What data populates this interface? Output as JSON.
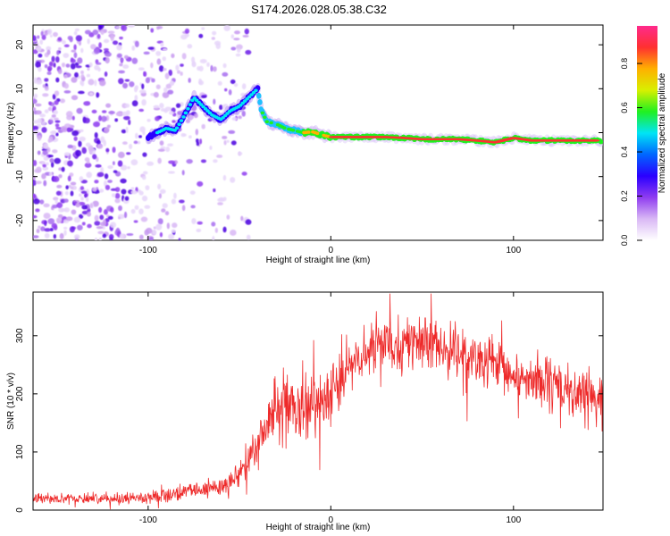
{
  "title": "S174.2026.028.05.38.C32",
  "chart_data": [
    {
      "type": "heatmap",
      "name": "spectrogram",
      "xlabel": "Height of straight line (km)",
      "ylabel": "Frequency (Hz)",
      "xlim": [
        -163,
        149
      ],
      "ylim": [
        -24.5,
        24.5
      ],
      "x_ticks": [
        -100,
        0,
        100
      ],
      "x_tick_labels": [
        "-100",
        "0",
        "100"
      ],
      "y_ticks": [
        20,
        10,
        0,
        -10,
        -20
      ],
      "y_tick_labels": [
        "20",
        "10",
        "0",
        "-10",
        "-20"
      ],
      "grid": false,
      "trace_ridge": {
        "description": "Main signal ridge (frequency vs height)",
        "x": [
          -100,
          -95,
          -90,
          -85,
          -80,
          -75,
          -70,
          -65,
          -60,
          -55,
          -50,
          -45,
          -40,
          -38,
          -35,
          -30,
          -25,
          -20,
          -15,
          -10,
          -5,
          0,
          10,
          20,
          30,
          40,
          50,
          60,
          70,
          80,
          90,
          100,
          110,
          120,
          130,
          140,
          148
        ],
        "y": [
          -1,
          0,
          1,
          0.5,
          4,
          8,
          6,
          4,
          3,
          5,
          6,
          8,
          10,
          5,
          2.5,
          2,
          1,
          0.5,
          0,
          0.2,
          -0.5,
          -1,
          -1,
          -1,
          -1,
          -1.2,
          -1.5,
          -1.5,
          -1.5,
          -1.8,
          -2.2,
          -1.2,
          -1.8,
          -1.8,
          -1.8,
          -1.8,
          -1.8
        ]
      },
      "noise_region": {
        "x_range": [
          -163,
          -55
        ],
        "description": "Scattered low-amplitude noise blobs"
      }
    },
    {
      "type": "line",
      "name": "snr",
      "xlabel": "Height of straight line (km)",
      "ylabel": "SNR (10 * v/v)",
      "xlim": [
        -163,
        149
      ],
      "ylim": [
        0,
        375
      ],
      "x_ticks": [
        -100,
        0,
        100
      ],
      "x_tick_labels": [
        "-100",
        "0",
        "100"
      ],
      "y_ticks": [
        0,
        100,
        200,
        300
      ],
      "y_tick_labels": [
        "0",
        "100",
        "200",
        "300"
      ],
      "grid": false,
      "series": [
        {
          "name": "SNR",
          "color": "#ee2a2a",
          "envelope_x": [
            -163,
            -120,
            -100,
            -80,
            -60,
            -50,
            -40,
            -35,
            -30,
            -20,
            -10,
            0,
            10,
            20,
            30,
            40,
            50,
            60,
            70,
            80,
            90,
            100,
            110,
            120,
            130,
            140,
            149
          ],
          "envelope_mean": [
            20,
            20,
            22,
            30,
            40,
            60,
            110,
            150,
            180,
            160,
            175,
            210,
            245,
            270,
            290,
            290,
            285,
            280,
            270,
            255,
            245,
            230,
            225,
            215,
            205,
            195,
            190
          ],
          "envelope_spread": [
            7,
            8,
            9,
            12,
            16,
            22,
            35,
            45,
            55,
            55,
            55,
            50,
            45,
            40,
            40,
            40,
            40,
            40,
            40,
            40,
            40,
            40,
            40,
            40,
            40,
            40,
            40
          ]
        }
      ]
    }
  ],
  "colorbar": {
    "label": "Normalized spectral amplitude",
    "range": [
      0,
      0.97
    ],
    "ticks": [
      0.0,
      0.2,
      0.4,
      0.6,
      0.8
    ],
    "tick_labels": [
      "0.0",
      "0.2",
      "0.4",
      "0.6",
      "0.8"
    ],
    "stops": [
      "#ffffff",
      "#d9b8f5",
      "#8f3cf0",
      "#2a00ff",
      "#0066ff",
      "#00e5f5",
      "#20f020",
      "#d8f000",
      "#ffb000",
      "#ff3030",
      "#ff2a8c"
    ]
  }
}
